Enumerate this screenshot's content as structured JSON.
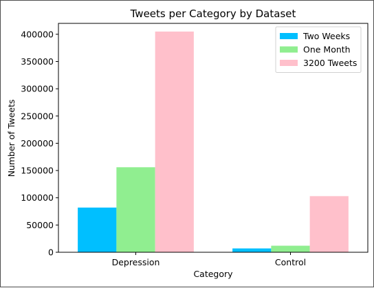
{
  "chart_data": {
    "type": "bar",
    "title": "Tweets per Category by Dataset",
    "xlabel": "Category",
    "ylabel": "Number of Tweets",
    "categories": [
      "Depression",
      "Control"
    ],
    "series": [
      {
        "name": "Two Weeks",
        "values": [
          82000,
          7000
        ],
        "color": "#00bfff"
      },
      {
        "name": "One Month",
        "values": [
          156000,
          12000
        ],
        "color": "#90ee90"
      },
      {
        "name": "3200 Tweets",
        "values": [
          405000,
          103000
        ],
        "color": "#ffc0cb"
      }
    ],
    "ylim": [
      0,
      420000
    ],
    "yticks": [
      0,
      50000,
      100000,
      150000,
      200000,
      250000,
      300000,
      350000,
      400000
    ],
    "grid": false,
    "legend_position": "top-right"
  }
}
